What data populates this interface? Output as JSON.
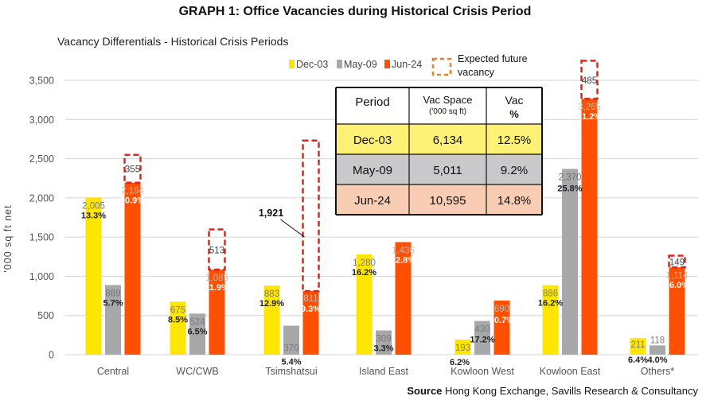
{
  "chart_data": {
    "type": "bar",
    "title": "GRAPH 1: Office Vacancies during Historical Crisis Period",
    "subtitle": "Vacancy Differentials - Historical Crisis Periods",
    "ylabel": "'000 sq ft net",
    "ylim": [
      0,
      3500
    ],
    "yticks": [
      0,
      500,
      1000,
      1500,
      2000,
      2500,
      3000,
      3500
    ],
    "ytick_labels": [
      "0",
      "500",
      "1,000",
      "1,500",
      "2,000",
      "2,500",
      "3,000",
      "3,500"
    ],
    "grid": true,
    "legend_position": "top",
    "categories": [
      "Central",
      "WC/CWB",
      "Tsimshatsui",
      "Island East",
      "Kowloon West",
      "Kowloon East",
      "Others*"
    ],
    "series": [
      {
        "name": "Dec-03",
        "color": "#FFE600",
        "values": [
          2005,
          675,
          883,
          1280,
          193,
          886,
          211
        ],
        "value_labels": [
          "2,005",
          "675",
          "883",
          "1,280",
          "193",
          "886",
          "211"
        ],
        "vacancy_rates": [
          "13.3%",
          "8.5%",
          "12.9%",
          "16.2%",
          "6.2%",
          "16.2%",
          "6.4%"
        ]
      },
      {
        "name": "May-09",
        "color": "#A7A8AA",
        "values": [
          889,
          524,
          370,
          309,
          430,
          2370,
          118
        ],
        "value_labels": [
          "889",
          "524",
          "370",
          "309",
          "430",
          "2,370",
          "118"
        ],
        "vacancy_rates": [
          "5.7%",
          "6.5%",
          "5.4%",
          "3.3%",
          "17.2%",
          "25.8%",
          "4.0%"
        ]
      },
      {
        "name": "Jun-24",
        "color": "#FF4F00",
        "values": [
          2194,
          1085,
          811,
          1436,
          690,
          3265,
          1114
        ],
        "value_labels": [
          "2,194",
          "1,085",
          "811",
          "1,436",
          "690",
          "3,265",
          "1,114"
        ],
        "vacancy_rates": [
          "10.9%",
          "11.9%",
          "9.3%",
          "12.8%",
          "20.7%",
          "21.2%",
          "16.0%"
        ]
      }
    ],
    "expected_future": {
      "name": "Expected future vacancy",
      "color": "#E8201A",
      "values": [
        355,
        513,
        1921,
        null,
        null,
        485,
        149
      ],
      "value_labels": [
        "355",
        "513",
        "1,921",
        "",
        "",
        "485",
        "149"
      ]
    },
    "table": {
      "headers": [
        "Period",
        "Vac Space",
        "('000 sq ft)",
        "Vac",
        "%"
      ],
      "rows": [
        {
          "period": "Dec-03",
          "space": "6,134",
          "rate": "12.5%",
          "color": "#FFF176"
        },
        {
          "period": "May-09",
          "space": "5,011",
          "rate": "9.2%",
          "color": "#C9C9CB"
        },
        {
          "period": "Jun-24",
          "space": "10,595",
          "rate": "14.8%",
          "color": "#F9CDB3"
        }
      ]
    },
    "source_label": "Source",
    "source_text": "Hong Kong Exchange, Savills Research & Consultancy"
  }
}
